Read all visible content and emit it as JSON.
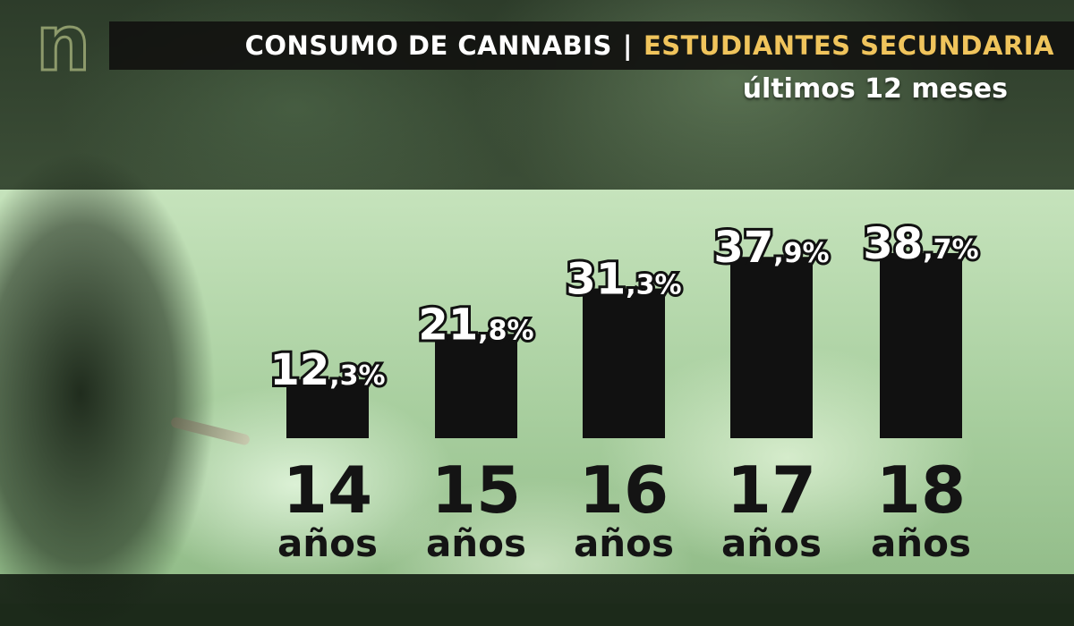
{
  "brand": {
    "logo_text": "n"
  },
  "header": {
    "title_left": "CONSUMO DE CANNABIS",
    "separator": "|",
    "title_right": "ESTUDIANTES SECUNDARIA",
    "subtitle": "últimos 12 meses"
  },
  "colors": {
    "title_accent": "#f0c45c",
    "bar": "#111111",
    "value_label_fill": "#ffffff"
  },
  "chart_data": {
    "type": "bar",
    "title": "CONSUMO DE CANNABIS | ESTUDIANTES SECUNDARIA",
    "subtitle": "últimos 12 meses",
    "categories": [
      "14",
      "15",
      "16",
      "17",
      "18"
    ],
    "category_unit": "años",
    "values": [
      12.3,
      21.8,
      31.3,
      37.9,
      38.7
    ],
    "value_labels": [
      {
        "main": "12",
        "small": ",3%"
      },
      {
        "main": "21",
        "small": ",8%"
      },
      {
        "main": "31",
        "small": ",3%"
      },
      {
        "main": "37",
        "small": ",9%"
      },
      {
        "main": "38",
        "small": ",7%"
      }
    ],
    "ylim": [
      0,
      40
    ],
    "grid": false,
    "legend": "none"
  }
}
